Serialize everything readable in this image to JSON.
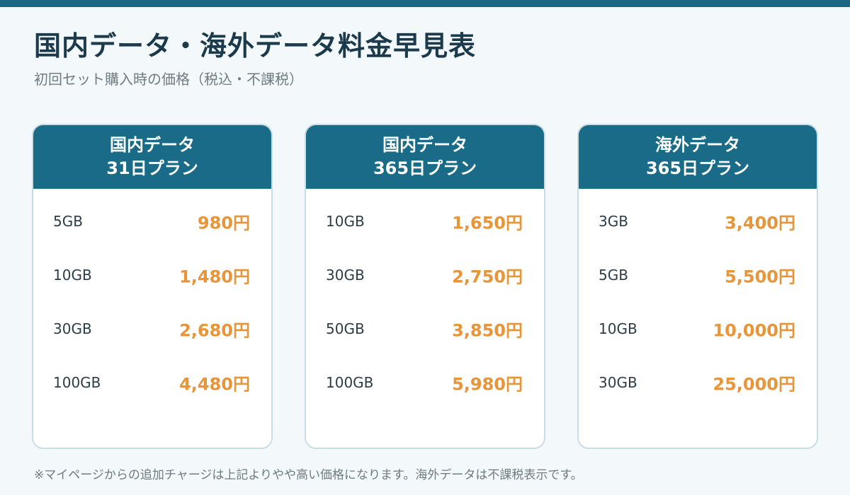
{
  "header": {
    "title": "国内データ・海外データ料金早見表",
    "subtitle": "初回セット購入時の価格（税込・不課税）"
  },
  "plans": [
    {
      "name_line1": "国内データ",
      "name_line2": "31日プラン",
      "rows": [
        {
          "size": "5GB",
          "price": "980円"
        },
        {
          "size": "10GB",
          "price": "1,480円"
        },
        {
          "size": "30GB",
          "price": "2,680円"
        },
        {
          "size": "100GB",
          "price": "4,480円"
        }
      ]
    },
    {
      "name_line1": "国内データ",
      "name_line2": "365日プラン",
      "rows": [
        {
          "size": "10GB",
          "price": "1,650円"
        },
        {
          "size": "30GB",
          "price": "2,750円"
        },
        {
          "size": "50GB",
          "price": "3,850円"
        },
        {
          "size": "100GB",
          "price": "5,980円"
        }
      ]
    },
    {
      "name_line1": "海外データ",
      "name_line2": "365日プラン",
      "rows": [
        {
          "size": "3GB",
          "price": "3,400円"
        },
        {
          "size": "5GB",
          "price": "5,500円"
        },
        {
          "size": "10GB",
          "price": "10,000円"
        },
        {
          "size": "30GB",
          "price": "25,000円"
        }
      ]
    }
  ],
  "footnote": "※マイページからの追加チャージは上記よりやや高い価格になります。海外データは不課税表示です。",
  "colors": {
    "accent": "#196b87",
    "price": "#e8953a",
    "background": "#f3f8fb"
  }
}
